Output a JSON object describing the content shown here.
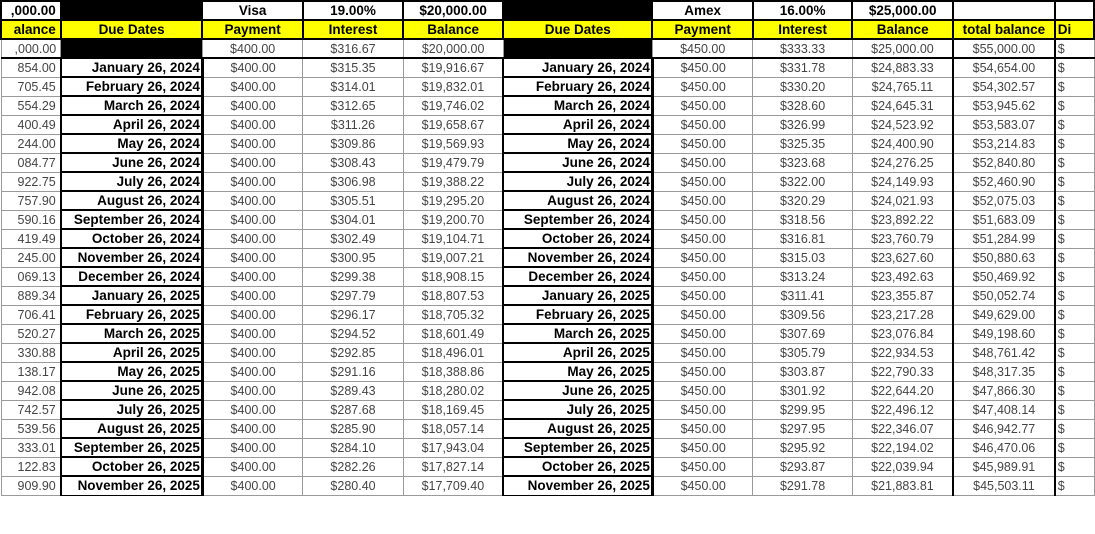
{
  "header_row": {
    "left": ",000.00",
    "visa_name": "Visa",
    "visa_rate": "19.00%",
    "visa_start": "$20,000.00",
    "amex_name": "Amex",
    "amex_rate": "16.00%",
    "amex_start": "$25,000.00"
  },
  "column_headers": {
    "left": "alance",
    "due_dates_1": "Due Dates",
    "payment_1": "Payment",
    "interest_1": "Interest",
    "balance_1": "Balance",
    "due_dates_2": "Due Dates",
    "payment_2": "Payment",
    "interest_2": "Interest",
    "balance_2": "Balance",
    "total_balance": "total balance",
    "right": "Di"
  },
  "initial_row": {
    "left": ",000.00",
    "visa_payment": "$400.00",
    "visa_interest": "$316.67",
    "visa_balance": "$20,000.00",
    "amex_payment": "$450.00",
    "amex_interest": "$333.33",
    "amex_balance": "$25,000.00",
    "total": "$55,000.00",
    "right": "$"
  },
  "colors": {
    "header_fill": "#ffff00",
    "border": "#000000"
  },
  "rows": [
    [
      "854.00",
      "January 26, 2024",
      "$400.00",
      "$315.35",
      "$19,916.67",
      "January 26, 2024",
      "$450.00",
      "$331.78",
      "$24,883.33",
      "$54,654.00",
      "$"
    ],
    [
      "705.45",
      "February 26, 2024",
      "$400.00",
      "$314.01",
      "$19,832.01",
      "February 26, 2024",
      "$450.00",
      "$330.20",
      "$24,765.11",
      "$54,302.57",
      "$"
    ],
    [
      "554.29",
      "March 26, 2024",
      "$400.00",
      "$312.65",
      "$19,746.02",
      "March 26, 2024",
      "$450.00",
      "$328.60",
      "$24,645.31",
      "$53,945.62",
      "$"
    ],
    [
      "400.49",
      "April 26, 2024",
      "$400.00",
      "$311.26",
      "$19,658.67",
      "April 26, 2024",
      "$450.00",
      "$326.99",
      "$24,523.92",
      "$53,583.07",
      "$"
    ],
    [
      "244.00",
      "May 26, 2024",
      "$400.00",
      "$309.86",
      "$19,569.93",
      "May 26, 2024",
      "$450.00",
      "$325.35",
      "$24,400.90",
      "$53,214.83",
      "$"
    ],
    [
      "084.77",
      "June 26, 2024",
      "$400.00",
      "$308.43",
      "$19,479.79",
      "June 26, 2024",
      "$450.00",
      "$323.68",
      "$24,276.25",
      "$52,840.80",
      "$"
    ],
    [
      "922.75",
      "July 26, 2024",
      "$400.00",
      "$306.98",
      "$19,388.22",
      "July 26, 2024",
      "$450.00",
      "$322.00",
      "$24,149.93",
      "$52,460.90",
      "$"
    ],
    [
      "757.90",
      "August 26, 2024",
      "$400.00",
      "$305.51",
      "$19,295.20",
      "August 26, 2024",
      "$450.00",
      "$320.29",
      "$24,021.93",
      "$52,075.03",
      "$"
    ],
    [
      "590.16",
      "September 26, 2024",
      "$400.00",
      "$304.01",
      "$19,200.70",
      "September 26, 2024",
      "$450.00",
      "$318.56",
      "$23,892.22",
      "$51,683.09",
      "$"
    ],
    [
      "419.49",
      "October 26, 2024",
      "$400.00",
      "$302.49",
      "$19,104.71",
      "October 26, 2024",
      "$450.00",
      "$316.81",
      "$23,760.79",
      "$51,284.99",
      "$"
    ],
    [
      "245.00",
      "November 26, 2024",
      "$400.00",
      "$300.95",
      "$19,007.21",
      "November 26, 2024",
      "$450.00",
      "$315.03",
      "$23,627.60",
      "$50,880.63",
      "$"
    ],
    [
      "069.13",
      "December 26, 2024",
      "$400.00",
      "$299.38",
      "$18,908.15",
      "December 26, 2024",
      "$450.00",
      "$313.24",
      "$23,492.63",
      "$50,469.92",
      "$"
    ],
    [
      "889.34",
      "January 26, 2025",
      "$400.00",
      "$297.79",
      "$18,807.53",
      "January 26, 2025",
      "$450.00",
      "$311.41",
      "$23,355.87",
      "$50,052.74",
      "$"
    ],
    [
      "706.41",
      "February 26, 2025",
      "$400.00",
      "$296.17",
      "$18,705.32",
      "February 26, 2025",
      "$450.00",
      "$309.56",
      "$23,217.28",
      "$49,629.00",
      "$"
    ],
    [
      "520.27",
      "March 26, 2025",
      "$400.00",
      "$294.52",
      "$18,601.49",
      "March 26, 2025",
      "$450.00",
      "$307.69",
      "$23,076.84",
      "$49,198.60",
      "$"
    ],
    [
      "330.88",
      "April 26, 2025",
      "$400.00",
      "$292.85",
      "$18,496.01",
      "April 26, 2025",
      "$450.00",
      "$305.79",
      "$22,934.53",
      "$48,761.42",
      "$"
    ],
    [
      "138.17",
      "May 26, 2025",
      "$400.00",
      "$291.16",
      "$18,388.86",
      "May 26, 2025",
      "$450.00",
      "$303.87",
      "$22,790.33",
      "$48,317.35",
      "$"
    ],
    [
      "942.08",
      "June 26, 2025",
      "$400.00",
      "$289.43",
      "$18,280.02",
      "June 26, 2025",
      "$450.00",
      "$301.92",
      "$22,644.20",
      "$47,866.30",
      "$"
    ],
    [
      "742.57",
      "July 26, 2025",
      "$400.00",
      "$287.68",
      "$18,169.45",
      "July 26, 2025",
      "$450.00",
      "$299.95",
      "$22,496.12",
      "$47,408.14",
      "$"
    ],
    [
      "539.56",
      "August 26, 2025",
      "$400.00",
      "$285.90",
      "$18,057.14",
      "August 26, 2025",
      "$450.00",
      "$297.95",
      "$22,346.07",
      "$46,942.77",
      "$"
    ],
    [
      "333.01",
      "September 26, 2025",
      "$400.00",
      "$284.10",
      "$17,943.04",
      "September 26, 2025",
      "$450.00",
      "$295.92",
      "$22,194.02",
      "$46,470.06",
      "$"
    ],
    [
      "122.83",
      "October 26, 2025",
      "$400.00",
      "$282.26",
      "$17,827.14",
      "October 26, 2025",
      "$450.00",
      "$293.87",
      "$22,039.94",
      "$45,989.91",
      "$"
    ],
    [
      "909.90",
      "November 26, 2025",
      "$400.00",
      "$280.40",
      "$17,709.40",
      "November 26, 2025",
      "$450.00",
      "$291.78",
      "$21,883.81",
      "$45,503.11",
      "$"
    ]
  ]
}
